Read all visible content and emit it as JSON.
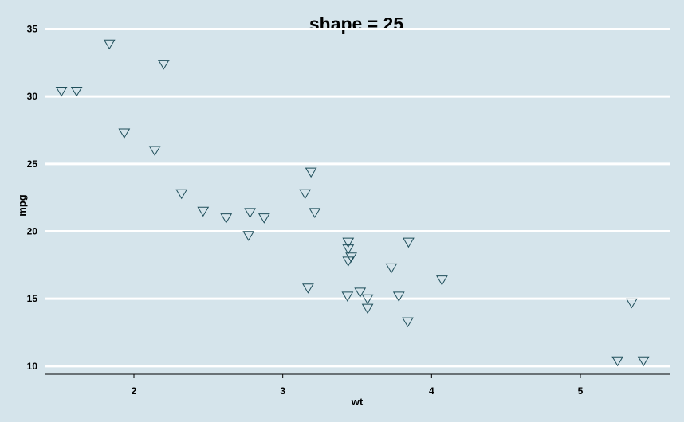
{
  "chart_data": {
    "type": "scatter",
    "title": "shape = 25",
    "xlabel": "wt",
    "ylabel": "mpg",
    "xlim": [
      1.4,
      5.6
    ],
    "ylim": [
      9.4,
      35.5
    ],
    "x_ticks": [
      2,
      3,
      4,
      5
    ],
    "y_ticks": [
      10,
      15,
      20,
      25,
      30,
      35
    ],
    "grid": "horizontal major lines",
    "marker": "triangle-down",
    "colors": {
      "background": "#d5e4eb",
      "grid": "#ffffff",
      "marker": "#1f4e5a"
    },
    "points": [
      {
        "x": 2.62,
        "y": 21.0
      },
      {
        "x": 2.875,
        "y": 21.0
      },
      {
        "x": 2.32,
        "y": 22.8
      },
      {
        "x": 3.215,
        "y": 21.4
      },
      {
        "x": 3.44,
        "y": 18.7
      },
      {
        "x": 3.46,
        "y": 18.1
      },
      {
        "x": 3.57,
        "y": 14.3
      },
      {
        "x": 3.19,
        "y": 24.4
      },
      {
        "x": 3.15,
        "y": 22.8
      },
      {
        "x": 3.44,
        "y": 19.2
      },
      {
        "x": 3.44,
        "y": 17.8
      },
      {
        "x": 4.07,
        "y": 16.4
      },
      {
        "x": 3.73,
        "y": 17.3
      },
      {
        "x": 3.78,
        "y": 15.2
      },
      {
        "x": 5.25,
        "y": 10.4
      },
      {
        "x": 5.424,
        "y": 10.4
      },
      {
        "x": 5.345,
        "y": 14.7
      },
      {
        "x": 2.2,
        "y": 32.4
      },
      {
        "x": 1.615,
        "y": 30.4
      },
      {
        "x": 1.835,
        "y": 33.9
      },
      {
        "x": 2.465,
        "y": 21.5
      },
      {
        "x": 3.52,
        "y": 15.5
      },
      {
        "x": 3.435,
        "y": 15.2
      },
      {
        "x": 3.84,
        "y": 13.3
      },
      {
        "x": 3.845,
        "y": 19.2
      },
      {
        "x": 1.935,
        "y": 27.3
      },
      {
        "x": 2.14,
        "y": 26.0
      },
      {
        "x": 1.513,
        "y": 30.4
      },
      {
        "x": 3.17,
        "y": 15.8
      },
      {
        "x": 2.77,
        "y": 19.7
      },
      {
        "x": 3.57,
        "y": 15.0
      },
      {
        "x": 2.78,
        "y": 21.4
      }
    ]
  }
}
